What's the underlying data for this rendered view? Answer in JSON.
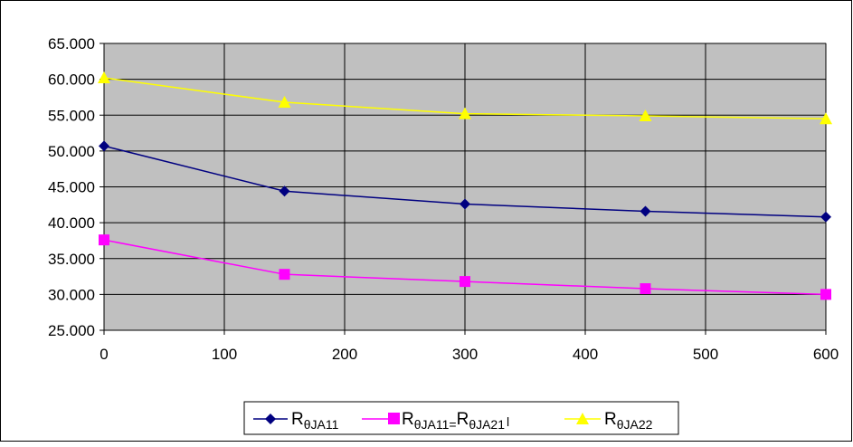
{
  "chart_data": {
    "type": "line",
    "title": "",
    "xlabel": "",
    "ylabel": "",
    "x": [
      0,
      150,
      300,
      450,
      600
    ],
    "x_ticks": [
      0,
      100,
      200,
      300,
      400,
      500,
      600
    ],
    "x_tick_labels": [
      "0",
      "100",
      "200",
      "300",
      "400",
      "500",
      "600"
    ],
    "xlim": [
      0,
      600
    ],
    "ylim": [
      25,
      65
    ],
    "y_ticks": [
      25,
      30,
      35,
      40,
      45,
      50,
      55,
      60,
      65
    ],
    "y_tick_labels": [
      "25.000",
      "30.000",
      "35.000",
      "40.000",
      "45.000",
      "50.000",
      "55.000",
      "60.000",
      "65.000"
    ],
    "grid": true,
    "plot_background": "#C0C0C0",
    "legend_position": "bottom",
    "series": [
      {
        "id": "s1",
        "label_main": "R",
        "label_sub": "θJA11",
        "color": "#000080",
        "marker": "diamond",
        "values": [
          50.7,
          44.4,
          42.6,
          41.6,
          40.8
        ]
      },
      {
        "id": "s2",
        "label_main": "R",
        "label_sub": "θJA11=",
        "label_main2": "R",
        "label_sub2": "θJA21",
        "label_tail": "l",
        "color": "#FF00FF",
        "marker": "square",
        "values": [
          37.6,
          32.8,
          31.8,
          30.8,
          30.0
        ]
      },
      {
        "id": "s3",
        "label_main": "R",
        "label_sub": "θJA22",
        "color": "#FFFF00",
        "marker": "triangle",
        "values": [
          60.2,
          56.8,
          55.2,
          54.9,
          54.5
        ]
      }
    ]
  }
}
